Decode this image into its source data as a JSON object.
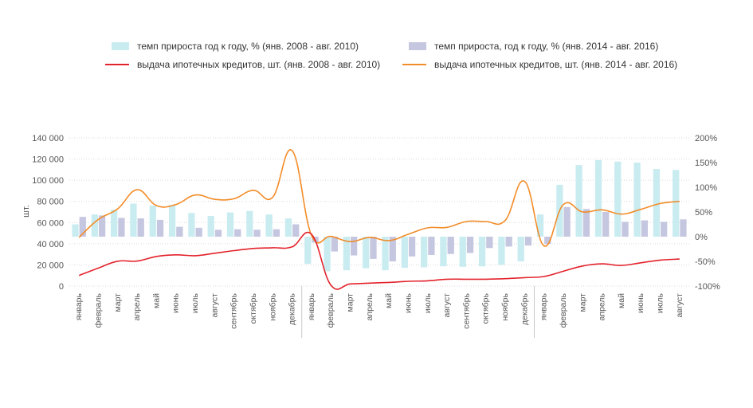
{
  "chart_data": {
    "type": "bar+line",
    "unit_label": "шт.",
    "legend": {
      "bars_2008": "темп прироста год к году, % (янв. 2008 - авг. 2010)",
      "bars_2014": "темп прироста, год к году, % (янв. 2014 - авг. 2016)",
      "line_2008": "выдача ипотечных кредитов, шт. (янв. 2008 - авг. 2010)",
      "line_2014": "выдача ипотечных кредитов, шт. (янв. 2014 - авг. 2016)"
    },
    "colors": {
      "bars_2008": "#c9ecf1",
      "bars_2014": "#c5c6df",
      "line_2008": "#e3232c",
      "line_2014": "#f28c28",
      "grid": "#d9d9d9",
      "separator": "#c8c8c8"
    },
    "y_left": {
      "min": 0,
      "max": 140000,
      "ticks": [
        0,
        20000,
        40000,
        60000,
        80000,
        100000,
        120000,
        140000
      ],
      "tick_labels": [
        "0",
        "20 000",
        "40 000",
        "60 000",
        "80 000",
        "100 000",
        "120 000",
        "140 000"
      ]
    },
    "y_right": {
      "min": -100,
      "max": 200,
      "ticks": [
        -100,
        -50,
        0,
        50,
        100,
        150,
        200
      ],
      "tick_labels": [
        "-100%",
        "-50%",
        "0%",
        "50%",
        "100%",
        "150%",
        "200%"
      ]
    },
    "categories": [
      "январь",
      "февраль",
      "март",
      "апрель",
      "май",
      "июнь",
      "июль",
      "август",
      "сентябрь",
      "октябрь",
      "ноябрь",
      "декабрь",
      "январь",
      "февраль",
      "март",
      "апрель",
      "май",
      "июнь",
      "июль",
      "август",
      "сентябрь",
      "октябрь",
      "ноябрь",
      "декабрь",
      "январь",
      "февраль",
      "март",
      "апрель",
      "май",
      "июнь",
      "июль",
      "август"
    ],
    "year_groups": [
      12,
      12,
      8
    ],
    "series": [
      {
        "name": "темп прироста год к году, % (янв. 2008 - авг. 2010)",
        "kind": "bar",
        "axis": "right",
        "values": [
          25,
          45,
          55,
          67,
          63,
          64,
          48,
          42,
          49,
          52,
          45,
          37,
          -55,
          -70,
          -68,
          -64,
          -68,
          -63,
          -62,
          -60,
          -61,
          -60,
          -57,
          -50,
          45,
          105,
          145,
          155,
          152,
          150,
          137,
          135
        ]
      },
      {
        "name": "темп прироста, год к году, % (янв. 2014 - авг. 2016)",
        "kind": "bar",
        "axis": "right",
        "values": [
          40,
          43,
          38,
          37,
          34,
          20,
          18,
          14,
          15,
          14,
          15,
          25,
          -12,
          -30,
          -38,
          -45,
          -50,
          -40,
          -37,
          -35,
          -33,
          -23,
          -20,
          -18,
          -15,
          60,
          56,
          50,
          30,
          33,
          30,
          35
        ]
      },
      {
        "name": "выдача ипотечных кредитов, шт. (янв. 2008 - авг. 2010)",
        "kind": "line",
        "axis": "left",
        "values": [
          10000,
          17000,
          23500,
          23600,
          28000,
          29500,
          28700,
          31000,
          33500,
          35500,
          36200,
          37000,
          49000,
          1000,
          2000,
          2800,
          3500,
          4500,
          5000,
          6500,
          6500,
          6500,
          7000,
          8000,
          9000,
          14000,
          19000,
          21000,
          19500,
          22000,
          24500,
          25500
        ]
      },
      {
        "name": "выдача ипотечных кредитов, шт. (янв. 2014 - авг. 2016)",
        "kind": "line",
        "axis": "left",
        "values": [
          46000,
          63000,
          73000,
          91000,
          76000,
          77000,
          86000,
          82000,
          82500,
          90500,
          84000,
          128000,
          48000,
          47000,
          42000,
          46000,
          43000,
          49000,
          55000,
          55500,
          61000,
          61000,
          62000,
          99000,
          38000,
          77000,
          70000,
          72000,
          68000,
          72500,
          78000,
          80000
        ]
      }
    ]
  }
}
